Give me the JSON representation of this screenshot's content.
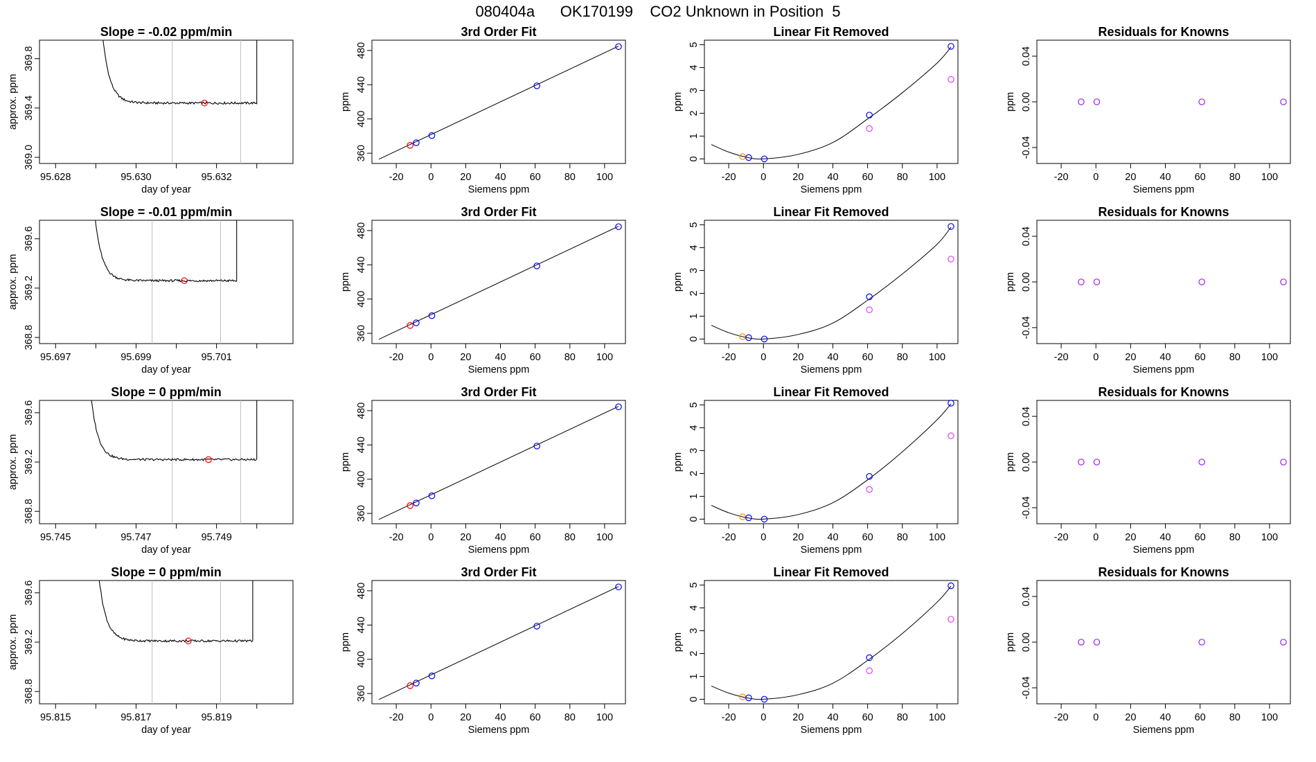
{
  "title": "080404a      OK170199    CO2 Unknown in Position  5",
  "colors": {
    "trace": "#000000",
    "gridline": "#bebebe",
    "point_red": "#ff0000",
    "point_blue": "#0000ff",
    "point_orange": "#ff8c00",
    "point_magenta": "#e040fb",
    "point_purple": "#a020f0"
  },
  "labels": {
    "day_of_year": "day of year",
    "approx_ppm": "approx. ppm",
    "ppm": "ppm",
    "siemens_ppm": "Siemens ppm",
    "fit_title": "3rd Order Fit",
    "linear_title": "Linear Fit Removed",
    "resid_title": "Residuals for Knowns"
  },
  "chart_data": [
    {
      "row": 1,
      "time_series": {
        "type": "line",
        "title": "Slope =  -0.02  ppm/min",
        "xlabel": "day of year",
        "ylabel": "approx. ppm",
        "xlim": [
          95.6276,
          95.6339
        ],
        "ylim": [
          368.95,
          369.95
        ],
        "xticks": [
          95.628,
          95.63,
          95.632
        ],
        "xtick_labels": [
          "95.628",
          "95.630",
          "95.632"
        ],
        "minor_xticks": [
          95.629,
          95.631,
          95.633
        ],
        "yticks": [
          369.0,
          369.4,
          369.8
        ],
        "ytick_labels": [
          "369.0",
          "369.4",
          "369.8"
        ],
        "vlines": [
          95.6309,
          95.6326
        ],
        "curve": {
          "x_start": 95.6291,
          "x_end": 95.633,
          "plateau": 369.44,
          "rise_tau": 0.00018
        },
        "marker": {
          "x": 95.6317,
          "y": 369.44
        }
      },
      "fit": {
        "type": "scatter",
        "title": "3rd Order Fit",
        "xlabel": "Siemens ppm",
        "ylabel": "ppm",
        "line": [
          [
            -30,
            353
          ],
          [
            108,
            485
          ]
        ],
        "points": [
          {
            "x": -12,
            "y": 369.2,
            "color": "red"
          },
          {
            "x": -8.5,
            "y": 372.2,
            "color": "blue"
          },
          {
            "x": 0.5,
            "y": 380.6,
            "color": "blue"
          },
          {
            "x": 61,
            "y": 438.7,
            "color": "blue"
          },
          {
            "x": 108,
            "y": 484.5,
            "color": "blue"
          }
        ]
      },
      "linear": {
        "type": "scatter",
        "title": "Linear Fit Removed",
        "xlabel": "Siemens ppm",
        "ylabel": "ppm",
        "curve": [
          [
            -30,
            0.63
          ],
          [
            -20,
            0.3
          ],
          [
            -10,
            0.08
          ],
          [
            0,
            0.0
          ],
          [
            20,
            0.2
          ],
          [
            40,
            0.72
          ],
          [
            60,
            1.75
          ],
          [
            80,
            2.9
          ],
          [
            100,
            4.2
          ],
          [
            108,
            4.9
          ]
        ],
        "points": [
          {
            "x": -12,
            "y": 0.1,
            "color": "orange"
          },
          {
            "x": -8.5,
            "y": 0.06,
            "color": "blue"
          },
          {
            "x": 0.5,
            "y": 0.0,
            "color": "blue"
          },
          {
            "x": 61,
            "y": 1.92,
            "color": "blue"
          },
          {
            "x": 108,
            "y": 4.93,
            "color": "blue"
          },
          {
            "x": 61,
            "y": 1.33,
            "color": "magenta"
          },
          {
            "x": 108,
            "y": 3.48,
            "color": "magenta"
          }
        ]
      },
      "resid": {
        "type": "scatter",
        "title": "Residuals for Knowns",
        "xlabel": "Siemens ppm",
        "ylabel": "ppm",
        "points": [
          {
            "x": -8.5,
            "y": 0,
            "color": "purple"
          },
          {
            "x": 0.5,
            "y": 0,
            "color": "purple"
          },
          {
            "x": 61,
            "y": 0,
            "color": "purple"
          },
          {
            "x": 108,
            "y": 0,
            "color": "purple"
          }
        ]
      }
    },
    {
      "row": 2,
      "time_series": {
        "type": "line",
        "title": "Slope =  -0.01  ppm/min",
        "xlabel": "day of year",
        "ylabel": "approx. ppm",
        "xlim": [
          95.6966,
          95.7029
        ],
        "ylim": [
          368.75,
          369.75
        ],
        "xticks": [
          95.697,
          95.699,
          95.701
        ],
        "xtick_labels": [
          "95.697",
          "95.699",
          "95.701"
        ],
        "minor_xticks": [
          95.698,
          95.7,
          95.702
        ],
        "yticks": [
          368.8,
          369.2,
          369.6
        ],
        "ytick_labels": [
          "368.8",
          "369.2",
          "369.6"
        ],
        "vlines": [
          95.6994,
          95.7011
        ],
        "curve": {
          "x_start": 95.6979,
          "x_end": 95.7015,
          "plateau": 369.26,
          "rise_tau": 0.00018
        },
        "marker": {
          "x": 95.7002,
          "y": 369.26
        }
      },
      "fit": {
        "type": "scatter",
        "title": "3rd Order Fit",
        "xlabel": "Siemens ppm",
        "ylabel": "ppm",
        "line": [
          [
            -30,
            353
          ],
          [
            108,
            485
          ]
        ],
        "points": [
          {
            "x": -12,
            "y": 369.2,
            "color": "red"
          },
          {
            "x": -8.5,
            "y": 372.2,
            "color": "blue"
          },
          {
            "x": 0.5,
            "y": 380.6,
            "color": "blue"
          },
          {
            "x": 61,
            "y": 438.7,
            "color": "blue"
          },
          {
            "x": 108,
            "y": 484.5,
            "color": "blue"
          }
        ]
      },
      "linear": {
        "type": "scatter",
        "title": "Linear Fit Removed",
        "xlabel": "Siemens ppm",
        "ylabel": "ppm",
        "curve": [
          [
            -30,
            0.6
          ],
          [
            -20,
            0.28
          ],
          [
            -10,
            0.07
          ],
          [
            0,
            0.0
          ],
          [
            20,
            0.2
          ],
          [
            40,
            0.7
          ],
          [
            60,
            1.7
          ],
          [
            80,
            2.85
          ],
          [
            100,
            4.15
          ],
          [
            108,
            4.9
          ]
        ],
        "points": [
          {
            "x": -12,
            "y": 0.1,
            "color": "orange"
          },
          {
            "x": -8.5,
            "y": 0.06,
            "color": "blue"
          },
          {
            "x": 0.5,
            "y": 0.0,
            "color": "blue"
          },
          {
            "x": 61,
            "y": 1.85,
            "color": "blue"
          },
          {
            "x": 108,
            "y": 4.93,
            "color": "blue"
          },
          {
            "x": 61,
            "y": 1.28,
            "color": "magenta"
          },
          {
            "x": 108,
            "y": 3.5,
            "color": "magenta"
          }
        ]
      },
      "resid": {
        "type": "scatter",
        "title": "Residuals for Knowns",
        "xlabel": "Siemens ppm",
        "ylabel": "ppm",
        "points": [
          {
            "x": -8.5,
            "y": 0,
            "color": "purple"
          },
          {
            "x": 0.5,
            "y": 0,
            "color": "purple"
          },
          {
            "x": 61,
            "y": 0,
            "color": "purple"
          },
          {
            "x": 108,
            "y": 0,
            "color": "purple"
          }
        ]
      }
    },
    {
      "row": 3,
      "time_series": {
        "type": "line",
        "title": "Slope =  0  ppm/min",
        "xlabel": "day of year",
        "ylabel": "approx. ppm",
        "xlim": [
          95.7446,
          95.7509
        ],
        "ylim": [
          368.7,
          369.7
        ],
        "xticks": [
          95.745,
          95.747,
          95.749
        ],
        "xtick_labels": [
          "95.745",
          "95.747",
          "95.749"
        ],
        "minor_xticks": [
          95.746,
          95.748,
          95.75
        ],
        "yticks": [
          368.8,
          369.2,
          369.6
        ],
        "ytick_labels": [
          "368.8",
          "369.2",
          "369.6"
        ],
        "vlines": [
          95.7479,
          95.7496
        ],
        "curve": {
          "x_start": 95.7458,
          "x_end": 95.75,
          "plateau": 369.22,
          "rise_tau": 0.00018
        },
        "marker": {
          "x": 95.7488,
          "y": 369.22
        }
      },
      "fit": {
        "type": "scatter",
        "title": "3rd Order Fit",
        "xlabel": "Siemens ppm",
        "ylabel": "ppm",
        "line": [
          [
            -30,
            353
          ],
          [
            108,
            485
          ]
        ],
        "points": [
          {
            "x": -12,
            "y": 369.2,
            "color": "red"
          },
          {
            "x": -8.5,
            "y": 372.2,
            "color": "blue"
          },
          {
            "x": 0.5,
            "y": 380.6,
            "color": "blue"
          },
          {
            "x": 61,
            "y": 438.7,
            "color": "blue"
          },
          {
            "x": 108,
            "y": 484.5,
            "color": "blue"
          }
        ]
      },
      "linear": {
        "type": "scatter",
        "title": "Linear Fit Removed",
        "xlabel": "Siemens ppm",
        "ylabel": "ppm",
        "curve": [
          [
            -30,
            0.6
          ],
          [
            -20,
            0.28
          ],
          [
            -10,
            0.07
          ],
          [
            0,
            0.0
          ],
          [
            20,
            0.2
          ],
          [
            40,
            0.72
          ],
          [
            60,
            1.72
          ],
          [
            80,
            2.95
          ],
          [
            100,
            4.35
          ],
          [
            108,
            5.05
          ]
        ],
        "points": [
          {
            "x": -12,
            "y": 0.1,
            "color": "orange"
          },
          {
            "x": -8.5,
            "y": 0.06,
            "color": "blue"
          },
          {
            "x": 0.5,
            "y": 0.0,
            "color": "blue"
          },
          {
            "x": 61,
            "y": 1.87,
            "color": "blue"
          },
          {
            "x": 108,
            "y": 5.08,
            "color": "blue"
          },
          {
            "x": 61,
            "y": 1.3,
            "color": "magenta"
          },
          {
            "x": 108,
            "y": 3.65,
            "color": "magenta"
          }
        ]
      },
      "resid": {
        "type": "scatter",
        "title": "Residuals for Knowns",
        "xlabel": "Siemens ppm",
        "ylabel": "ppm",
        "points": [
          {
            "x": -8.5,
            "y": 0,
            "color": "purple"
          },
          {
            "x": 0.5,
            "y": 0,
            "color": "purple"
          },
          {
            "x": 61,
            "y": 0,
            "color": "purple"
          },
          {
            "x": 108,
            "y": 0,
            "color": "purple"
          }
        ]
      }
    },
    {
      "row": 4,
      "time_series": {
        "type": "line",
        "title": "Slope =  0  ppm/min",
        "xlabel": "day of year",
        "ylabel": "approx. ppm",
        "xlim": [
          95.8146,
          95.8209
        ],
        "ylim": [
          368.7,
          369.7
        ],
        "xticks": [
          95.815,
          95.817,
          95.819
        ],
        "xtick_labels": [
          "95.815",
          "95.817",
          "95.819"
        ],
        "minor_xticks": [
          95.816,
          95.818,
          95.82
        ],
        "yticks": [
          368.8,
          369.2,
          369.6
        ],
        "ytick_labels": [
          "368.8",
          "369.2",
          "369.6"
        ],
        "vlines": [
          95.8174,
          95.8191
        ],
        "curve": {
          "x_start": 95.816,
          "x_end": 95.8199,
          "plateau": 369.21,
          "rise_tau": 0.00018
        },
        "marker": {
          "x": 95.8183,
          "y": 369.21
        }
      },
      "fit": {
        "type": "scatter",
        "title": "3rd Order Fit",
        "xlabel": "Siemens ppm",
        "ylabel": "ppm",
        "line": [
          [
            -30,
            353
          ],
          [
            108,
            485
          ]
        ],
        "points": [
          {
            "x": -12,
            "y": 369.2,
            "color": "red"
          },
          {
            "x": -8.5,
            "y": 372.2,
            "color": "blue"
          },
          {
            "x": 0.5,
            "y": 380.6,
            "color": "blue"
          },
          {
            "x": 61,
            "y": 438.7,
            "color": "blue"
          },
          {
            "x": 108,
            "y": 484.5,
            "color": "blue"
          }
        ]
      },
      "linear": {
        "type": "scatter",
        "title": "Linear Fit Removed",
        "xlabel": "Siemens ppm",
        "ylabel": "ppm",
        "curve": [
          [
            -30,
            0.58
          ],
          [
            -20,
            0.27
          ],
          [
            -10,
            0.07
          ],
          [
            0,
            0.0
          ],
          [
            20,
            0.2
          ],
          [
            40,
            0.7
          ],
          [
            60,
            1.7
          ],
          [
            80,
            2.88
          ],
          [
            100,
            4.25
          ],
          [
            108,
            4.95
          ]
        ],
        "points": [
          {
            "x": -12,
            "y": 0.1,
            "color": "orange"
          },
          {
            "x": -8.5,
            "y": 0.06,
            "color": "blue"
          },
          {
            "x": 0.5,
            "y": 0.0,
            "color": "blue"
          },
          {
            "x": 61,
            "y": 1.82,
            "color": "blue"
          },
          {
            "x": 108,
            "y": 4.97,
            "color": "blue"
          },
          {
            "x": 61,
            "y": 1.25,
            "color": "magenta"
          },
          {
            "x": 108,
            "y": 3.5,
            "color": "magenta"
          }
        ]
      },
      "resid": {
        "type": "scatter",
        "title": "Residuals for Knowns",
        "xlabel": "Siemens ppm",
        "ylabel": "ppm",
        "points": [
          {
            "x": -8.5,
            "y": 0,
            "color": "purple"
          },
          {
            "x": 0.5,
            "y": 0,
            "color": "purple"
          },
          {
            "x": 61,
            "y": 0,
            "color": "purple"
          },
          {
            "x": 108,
            "y": 0,
            "color": "purple"
          }
        ]
      }
    }
  ],
  "axes": {
    "fit": {
      "xlim": [
        -34,
        112
      ],
      "ylim": [
        348,
        492
      ],
      "xticks": [
        -20,
        0,
        20,
        40,
        60,
        80,
        100
      ],
      "yticks": [
        360,
        400,
        440,
        480
      ]
    },
    "linear": {
      "xlim": [
        -34,
        112
      ],
      "ylim": [
        -0.2,
        5.2
      ],
      "xticks": [
        -20,
        0,
        20,
        40,
        60,
        80,
        100
      ],
      "yticks": [
        0,
        1,
        2,
        3,
        4,
        5
      ]
    },
    "resid": {
      "xlim": [
        -34,
        112
      ],
      "ylim": [
        -0.054,
        0.054
      ],
      "xticks": [
        -20,
        0,
        20,
        40,
        60,
        80,
        100
      ],
      "yticks": [
        -0.04,
        0.0,
        0.04
      ],
      "ytick_labels": [
        "-0.04",
        "0.00",
        "0.04"
      ]
    }
  }
}
